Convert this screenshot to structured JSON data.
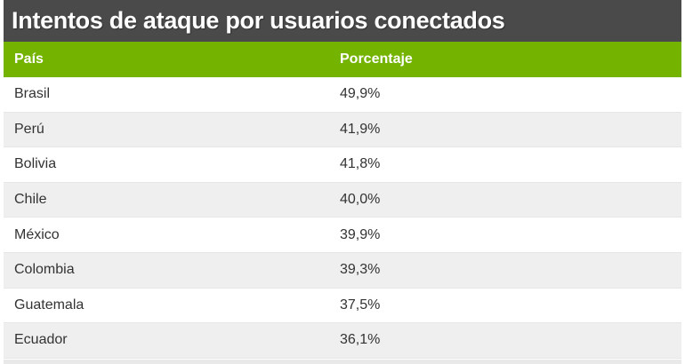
{
  "chart_data": {
    "type": "table",
    "title": "Intentos de ataque por usuarios conectados",
    "columns": [
      "País",
      "Porcentaje"
    ],
    "rows": [
      {
        "country": "Brasil",
        "value": "49,9%"
      },
      {
        "country": "Perú",
        "value": "41,9%"
      },
      {
        "country": "Bolivia",
        "value": "41,8%"
      },
      {
        "country": "Chile",
        "value": "40,0%"
      },
      {
        "country": "México",
        "value": "39,9%"
      },
      {
        "country": "Colombia",
        "value": "39,3%"
      },
      {
        "country": "Guatemala",
        "value": "37,5%"
      },
      {
        "country": "Ecuador",
        "value": "36,1%"
      }
    ],
    "values_numeric": [
      49.9,
      41.9,
      41.8,
      40.0,
      39.9,
      39.3,
      37.5,
      36.1
    ]
  },
  "colors": {
    "title_bar": "#4a4a4a",
    "header": "#74b300",
    "row_alt": "#efefef"
  }
}
